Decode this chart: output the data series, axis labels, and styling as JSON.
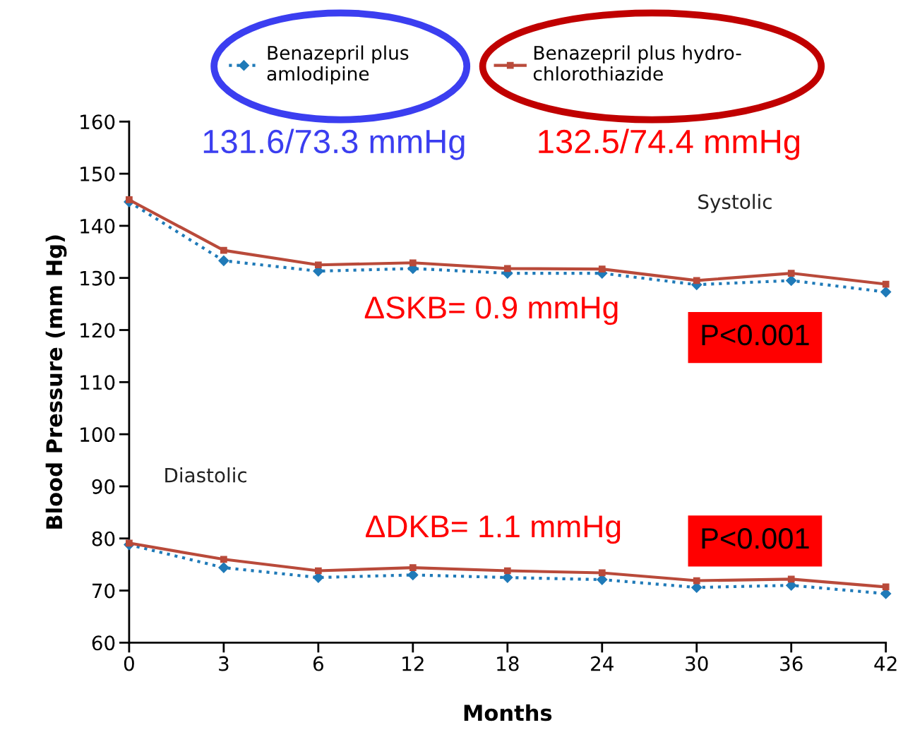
{
  "chart_data": {
    "type": "line",
    "xlabel": "Months",
    "ylabel": "Blood Pressure (mm Hg)",
    "categories": [
      "0",
      "3",
      "6",
      "12",
      "18",
      "24",
      "30",
      "36",
      "42"
    ],
    "ylim": [
      60,
      160
    ],
    "yticks": [
      60,
      70,
      80,
      90,
      100,
      110,
      120,
      130,
      140,
      150,
      160
    ],
    "grid": false,
    "legend": "top",
    "series": [
      {
        "name": "Benazepril plus\namlodipine",
        "color": "#1f7ab8",
        "marker": "diamond",
        "line_style": "dotted",
        "values": [
          144.6,
          133.3,
          131.3,
          131.8,
          130.9,
          130.9,
          128.7,
          129.5,
          127.3
        ]
      },
      {
        "name": "Benazepril plus hydro-\nchlorothiazide",
        "color": "#b94a3a",
        "marker": "square",
        "line_style": "solid",
        "values": [
          145.0,
          135.3,
          132.5,
          132.9,
          131.8,
          131.7,
          129.5,
          130.9,
          128.8
        ]
      },
      {
        "color": "#1f7ab8",
        "marker": "diamond",
        "line_style": "dotted",
        "values": [
          78.8,
          74.4,
          72.5,
          73.0,
          72.5,
          72.1,
          70.6,
          71.0,
          69.4
        ]
      },
      {
        "color": "#b94a3a",
        "marker": "square",
        "line_style": "solid",
        "values": [
          79.1,
          76.0,
          73.8,
          74.4,
          73.8,
          73.4,
          71.9,
          72.2,
          70.7
        ]
      }
    ],
    "annotations": [
      "131.6/73.3 mmHg",
      "132.5/74.4 mmHg",
      "Systolic",
      "Diastolic",
      "ΔSKB= 0.9 mmHg",
      "P<0.001",
      "ΔDKB= 1.1 mmHg",
      "P<0.001"
    ]
  }
}
